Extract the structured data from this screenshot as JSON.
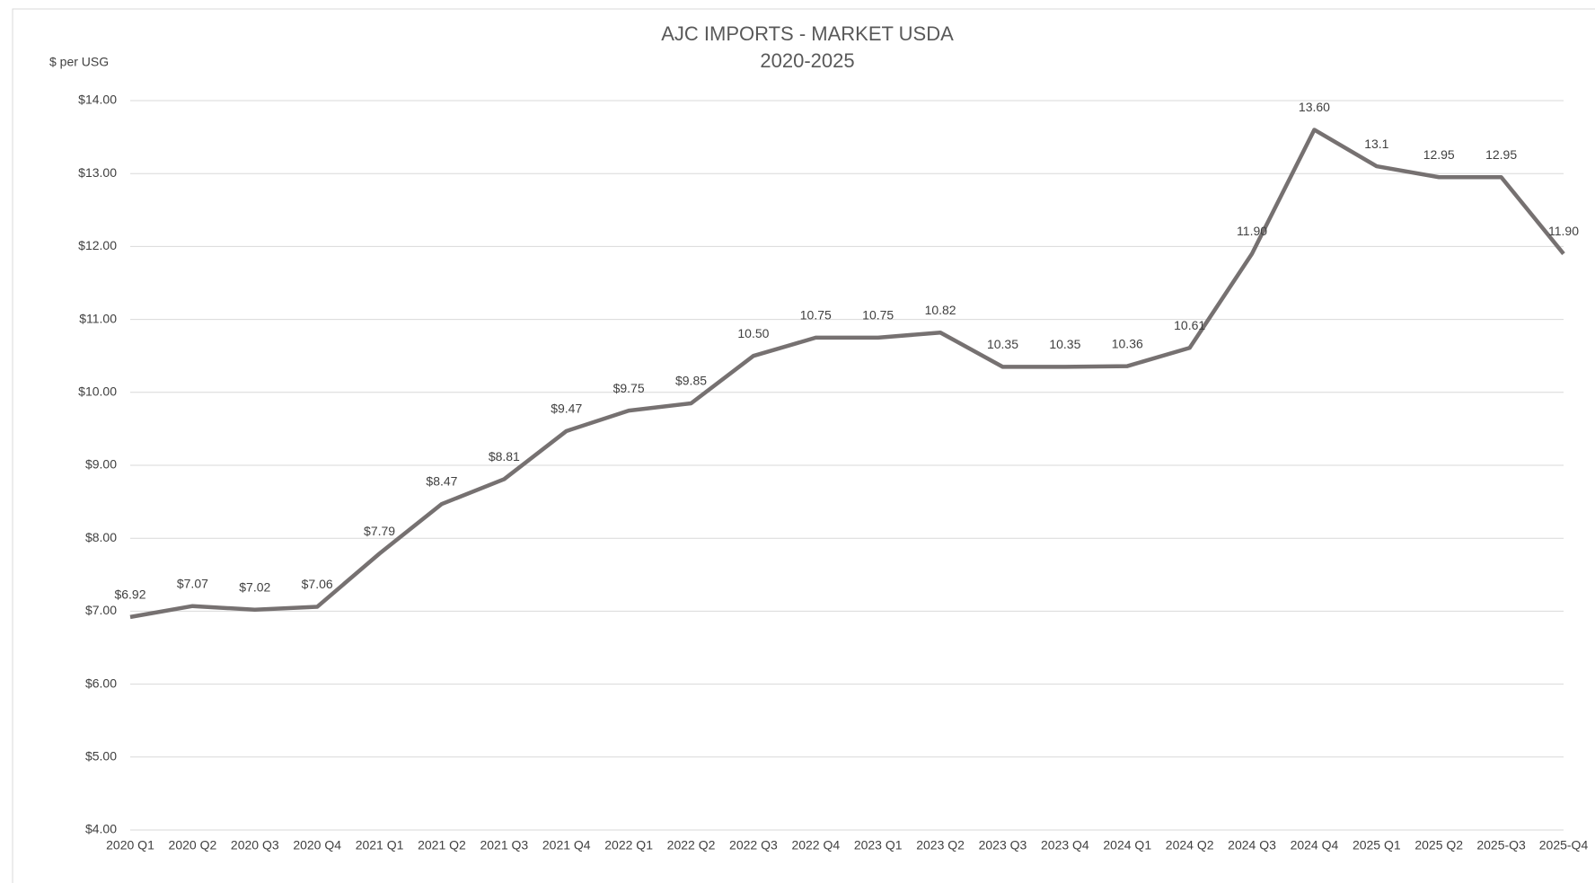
{
  "chart_data": {
    "type": "line",
    "title": "AJC IMPORTS - MARKET USDA",
    "subtitle": "2020-2025",
    "y_label": "$ per USG",
    "categories": [
      "2020 Q1",
      "2020 Q2",
      "2020 Q3",
      "2020 Q4",
      "2021 Q1",
      "2021 Q2",
      "2021 Q3",
      "2021 Q4",
      "2022 Q1",
      "2022 Q2",
      "2022 Q3",
      "2022 Q4",
      "2023 Q1",
      "2023 Q2",
      "2023 Q3",
      "2023 Q4",
      "2024 Q1",
      "2024 Q2",
      "2024 Q3",
      "2024 Q4",
      "2025 Q1",
      "2025 Q2",
      "2025-Q3",
      "2025-Q4"
    ],
    "values": [
      6.92,
      7.07,
      7.02,
      7.06,
      7.79,
      8.47,
      8.81,
      9.47,
      9.75,
      9.85,
      10.5,
      10.75,
      10.75,
      10.82,
      10.35,
      10.35,
      10.36,
      10.61,
      11.9,
      13.6,
      13.1,
      12.95,
      12.95,
      11.9
    ],
    "value_labels": [
      "$6.92",
      "$7.07",
      "$7.02",
      "$7.06",
      "$7.79",
      "$8.47",
      "$8.81",
      "$9.47",
      "$9.75",
      "$9.85",
      "10.50",
      "10.75",
      "10.75",
      "10.82",
      "10.35",
      "10.35",
      "10.36",
      "10.61",
      "11.90",
      "13.60",
      "13.1",
      "12.95",
      "12.95",
      "11.90"
    ],
    "color": "#767171",
    "ylim": [
      4,
      14
    ],
    "yticks": [
      {
        "value": 4,
        "label": "$4.00"
      },
      {
        "value": 5,
        "label": "$5.00"
      },
      {
        "value": 6,
        "label": "$6.00"
      },
      {
        "value": 7,
        "label": "$7.00"
      },
      {
        "value": 8,
        "label": "$8.00"
      },
      {
        "value": 9,
        "label": "$9.00"
      },
      {
        "value": 10,
        "label": "$10.00"
      },
      {
        "value": 11,
        "label": "$11.00"
      },
      {
        "value": 12,
        "label": "$12.00"
      },
      {
        "value": 13,
        "label": "$13.00"
      },
      {
        "value": 14,
        "label": "$14.00"
      }
    ],
    "grid": true
  }
}
